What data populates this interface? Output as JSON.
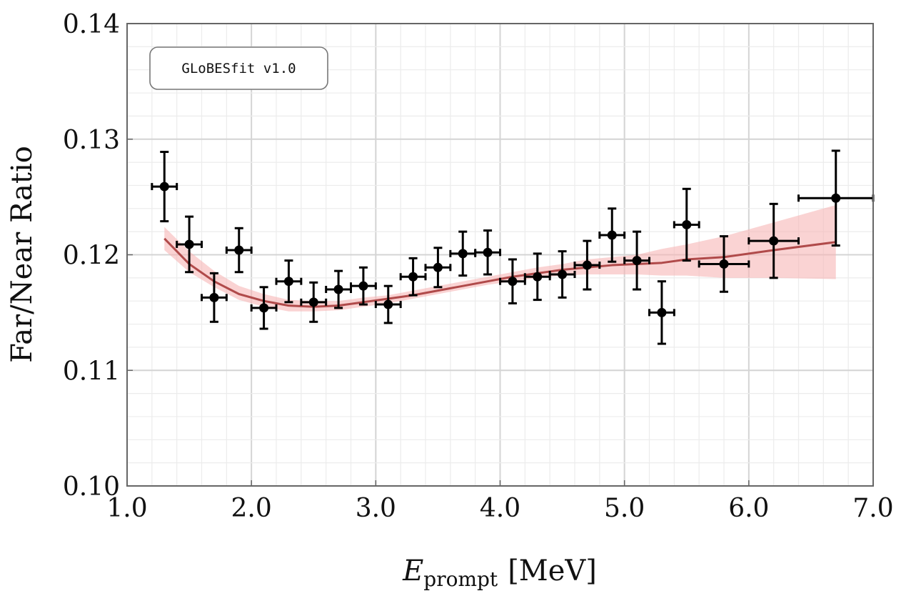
{
  "chart_data": {
    "type": "scatter",
    "title": "",
    "xlabel": {
      "main": "E",
      "sub": "prompt",
      "unit": "[MeV]"
    },
    "ylabel": "Far/Near Ratio",
    "xlim": [
      1.0,
      7.0
    ],
    "ylim": [
      0.1,
      0.14
    ],
    "xticks": [
      1.0,
      2.0,
      3.0,
      4.0,
      5.0,
      6.0,
      7.0
    ],
    "xtick_labels": [
      "1.0",
      "2.0",
      "3.0",
      "4.0",
      "5.0",
      "6.0",
      "7.0"
    ],
    "yticks": [
      0.1,
      0.11,
      0.12,
      0.13,
      0.14
    ],
    "ytick_labels": [
      "0.10",
      "0.11",
      "0.12",
      "0.13",
      "0.14"
    ],
    "grid": true,
    "annotation": "GLoBESfit v1.0",
    "colors": {
      "data": "#000000",
      "fit_line": "#b04a4a",
      "fit_band": "#f7b6b6"
    },
    "series": [
      {
        "kind": "errorbar",
        "x": [
          1.3,
          1.5,
          1.7,
          1.9,
          2.1,
          2.3,
          2.5,
          2.7,
          2.9,
          3.1,
          3.3,
          3.5,
          3.7,
          3.9,
          4.1,
          4.3,
          4.5,
          4.7,
          4.9,
          5.1,
          5.3,
          5.5,
          5.8,
          6.2,
          6.7
        ],
        "xerr": [
          0.1,
          0.1,
          0.1,
          0.1,
          0.1,
          0.1,
          0.1,
          0.1,
          0.1,
          0.1,
          0.1,
          0.1,
          0.1,
          0.1,
          0.1,
          0.1,
          0.1,
          0.1,
          0.1,
          0.1,
          0.1,
          0.1,
          0.2,
          0.2,
          0.3
        ],
        "y": [
          0.1259,
          0.1209,
          0.1163,
          0.1204,
          0.1154,
          0.1177,
          0.1159,
          0.117,
          0.1173,
          0.1157,
          0.1181,
          0.1189,
          0.1201,
          0.1202,
          0.1177,
          0.1181,
          0.1183,
          0.1191,
          0.1217,
          0.1195,
          0.115,
          0.1226,
          0.1192,
          0.1212,
          0.1249
        ],
        "yerr": [
          0.003,
          0.0024,
          0.0021,
          0.0019,
          0.0018,
          0.0018,
          0.0017,
          0.0016,
          0.0016,
          0.0016,
          0.0016,
          0.0017,
          0.0019,
          0.0019,
          0.0019,
          0.002,
          0.002,
          0.0021,
          0.0023,
          0.0025,
          0.0027,
          0.0031,
          0.0024,
          0.0032,
          0.0041
        ]
      },
      {
        "kind": "band",
        "x": [
          1.3,
          1.5,
          1.7,
          1.9,
          2.1,
          2.3,
          2.5,
          2.7,
          2.9,
          3.1,
          3.3,
          3.5,
          3.7,
          3.9,
          4.1,
          4.3,
          4.5,
          4.7,
          4.9,
          5.1,
          5.3,
          5.5,
          5.8,
          6.2,
          6.7
        ],
        "lower": [
          0.1204,
          0.1185,
          0.1172,
          0.1161,
          0.1155,
          0.1151,
          0.1151,
          0.1152,
          0.1155,
          0.1158,
          0.1162,
          0.1166,
          0.117,
          0.1174,
          0.1177,
          0.118,
          0.1182,
          0.1183,
          0.1183,
          0.1183,
          0.1182,
          0.1182,
          0.118,
          0.118,
          0.1179
        ],
        "upper": [
          0.1224,
          0.1203,
          0.1186,
          0.1173,
          0.1166,
          0.1161,
          0.116,
          0.116,
          0.1163,
          0.1165,
          0.1169,
          0.1173,
          0.1177,
          0.1181,
          0.1185,
          0.1189,
          0.1192,
          0.1196,
          0.1198,
          0.12,
          0.1205,
          0.1209,
          0.1216,
          0.1228,
          0.1243
        ]
      },
      {
        "kind": "line",
        "x": [
          1.3,
          1.5,
          1.7,
          1.9,
          2.1,
          2.3,
          2.5,
          2.7,
          2.9,
          3.1,
          3.3,
          3.5,
          3.7,
          3.9,
          4.1,
          4.3,
          4.5,
          4.7,
          4.9,
          5.1,
          5.3,
          5.5,
          5.8,
          6.2,
          6.7
        ],
        "y": [
          0.1214,
          0.1192,
          0.1177,
          0.1166,
          0.116,
          0.1156,
          0.1155,
          0.1156,
          0.1159,
          0.1162,
          0.1165,
          0.1169,
          0.1173,
          0.1177,
          0.1181,
          0.1184,
          0.1187,
          0.1189,
          0.1191,
          0.1192,
          0.1193,
          0.1196,
          0.1198,
          0.1204,
          0.1211
        ]
      }
    ]
  }
}
